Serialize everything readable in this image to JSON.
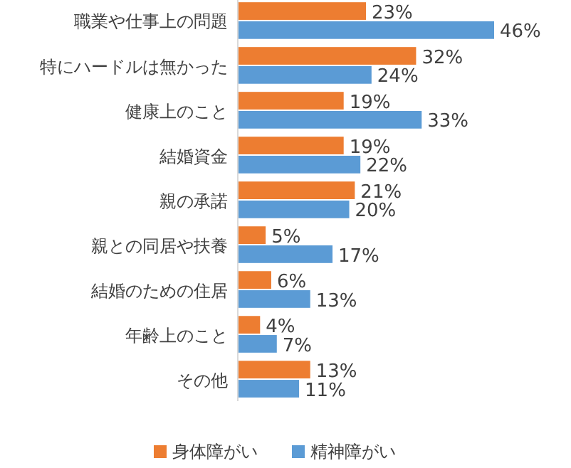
{
  "chart_data": {
    "type": "bar",
    "orientation": "horizontal",
    "categories": [
      "職業や仕事上の問題",
      "特にハードルは無かった",
      "健康上のこと",
      "結婚資金",
      "親の承諾",
      "親との同居や扶養",
      "結婚のための住居",
      "年齢上のこと",
      "その他"
    ],
    "series": [
      {
        "name": "身体障がい",
        "color": "#ed7d31",
        "values": [
          23,
          32,
          19,
          19,
          21,
          5,
          6,
          4,
          13
        ],
        "value_labels": [
          "23%",
          "32%",
          "19%",
          "19%",
          "21%",
          "5%",
          "6%",
          "4%",
          "13%"
        ]
      },
      {
        "name": "精神障がい",
        "color": "#5b9bd5",
        "values": [
          46,
          24,
          33,
          22,
          20,
          17,
          13,
          7,
          11
        ],
        "value_labels": [
          "46%",
          "24%",
          "33%",
          "22%",
          "20%",
          "17%",
          "13%",
          "7%",
          "11%"
        ]
      }
    ],
    "legend": "bottom"
  }
}
